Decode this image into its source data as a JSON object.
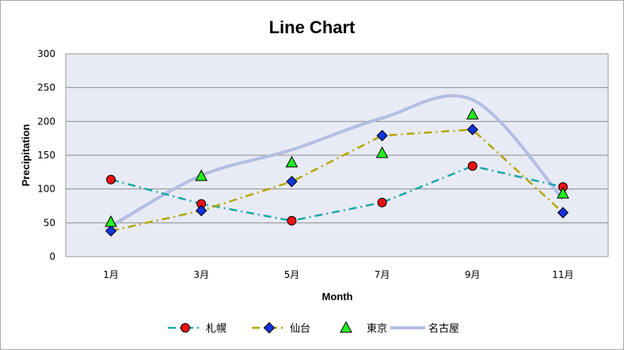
{
  "chart_data": {
    "type": "line",
    "title": "Line Chart",
    "xlabel": "Month",
    "ylabel": "Precipitation",
    "categories": [
      "1月",
      "3月",
      "5月",
      "7月",
      "9月",
      "11月"
    ],
    "ylim": [
      0,
      300
    ],
    "yticks": [
      "0",
      "50",
      "100",
      "150",
      "200",
      "250",
      "300"
    ],
    "grid": true,
    "legend_position": "bottom",
    "plot_background": "#e8ebf5",
    "series": [
      {
        "name": "札幌",
        "values": [
          114,
          78,
          53,
          80,
          134,
          103
        ],
        "color": "#1aa7a7",
        "line_style": "dash-dot",
        "marker": "circle",
        "marker_color": "#ee1111",
        "smooth": false,
        "show_line": true
      },
      {
        "name": "仙台",
        "values": [
          38,
          68,
          111,
          179,
          188,
          65
        ],
        "color": "#b3a600",
        "line_style": "dash-dot",
        "marker": "diamond",
        "marker_color": "#1133dd",
        "smooth": false,
        "show_line": true
      },
      {
        "name": "東京",
        "values": [
          51,
          119,
          139,
          153,
          210,
          93
        ],
        "color": "#22aa22",
        "line_style": "none",
        "marker": "triangle",
        "marker_color": "#22ee22",
        "smooth": false,
        "show_line": false
      },
      {
        "name": "名古屋",
        "values": [
          45,
          120,
          158,
          205,
          232,
          85
        ],
        "color": "#b4bde2",
        "line_style": "solid",
        "marker": "none",
        "marker_color": "",
        "smooth": true,
        "show_line": true
      }
    ]
  }
}
